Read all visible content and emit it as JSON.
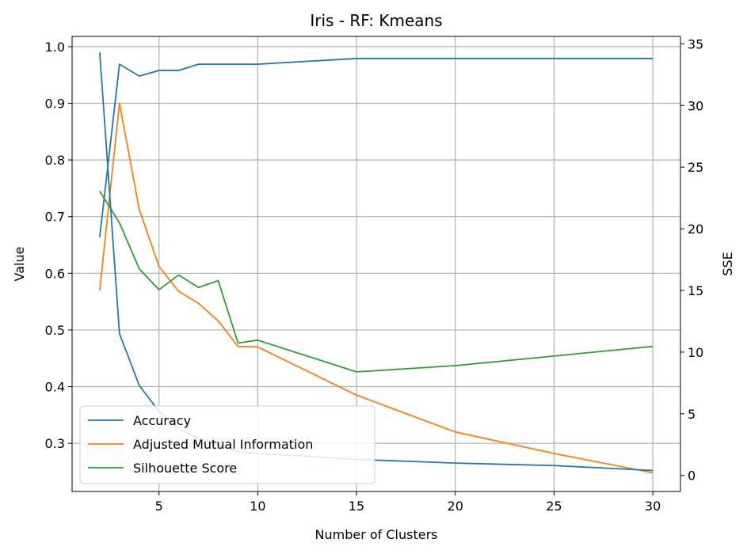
{
  "chart_data": {
    "type": "line",
    "title": "Iris - RF: Kmeans",
    "xlabel": "Number of Clusters",
    "ylabel": "Value",
    "y2label": "SSE",
    "xlim": [
      0.6,
      31.4
    ],
    "ylim": [
      0.215,
      1.018
    ],
    "y2lim": [
      -1.3,
      35.6
    ],
    "xticks": [
      5,
      10,
      15,
      20,
      25,
      30
    ],
    "yticks": [
      0.3,
      0.4,
      0.5,
      0.6,
      0.7,
      0.8,
      0.9,
      1.0
    ],
    "y2ticks": [
      0,
      5,
      10,
      15,
      20,
      25,
      30,
      35
    ],
    "grid": true,
    "legend_position": "lower-left",
    "x": [
      2,
      3,
      4,
      5,
      6,
      7,
      8,
      9,
      10,
      15,
      20,
      25,
      30
    ],
    "series": [
      {
        "name": "Accuracy",
        "axis": "left",
        "color": "#1f77b4",
        "values": [
          0.664,
          0.969,
          0.948,
          0.958,
          0.958,
          0.969,
          0.969,
          0.969,
          0.969,
          0.979,
          0.979,
          0.979,
          0.979
        ]
      },
      {
        "name": "Adjusted Mutual Information",
        "axis": "left",
        "color": "#ff7f0e",
        "values": [
          0.57,
          0.9,
          0.713,
          0.612,
          0.568,
          0.547,
          0.516,
          0.471,
          0.47,
          0.385,
          0.32,
          0.282,
          0.248
        ]
      },
      {
        "name": "Silhouette Score",
        "axis": "left",
        "color": "#2ca02c",
        "values": [
          0.745,
          0.689,
          0.608,
          0.571,
          0.597,
          0.575,
          0.587,
          0.477,
          0.482,
          0.426,
          0.437,
          0.454,
          0.471
        ]
      },
      {
        "name": "SSE",
        "axis": "right",
        "color": "#1f77b4",
        "values": [
          34.3,
          11.5,
          7.3,
          5.2,
          3.8,
          3.0,
          2.5,
          1.9,
          1.8,
          1.3,
          1.0,
          0.8,
          0.4
        ]
      }
    ],
    "legend": [
      "Accuracy",
      "Adjusted Mutual Information",
      "Silhouette Score"
    ]
  }
}
